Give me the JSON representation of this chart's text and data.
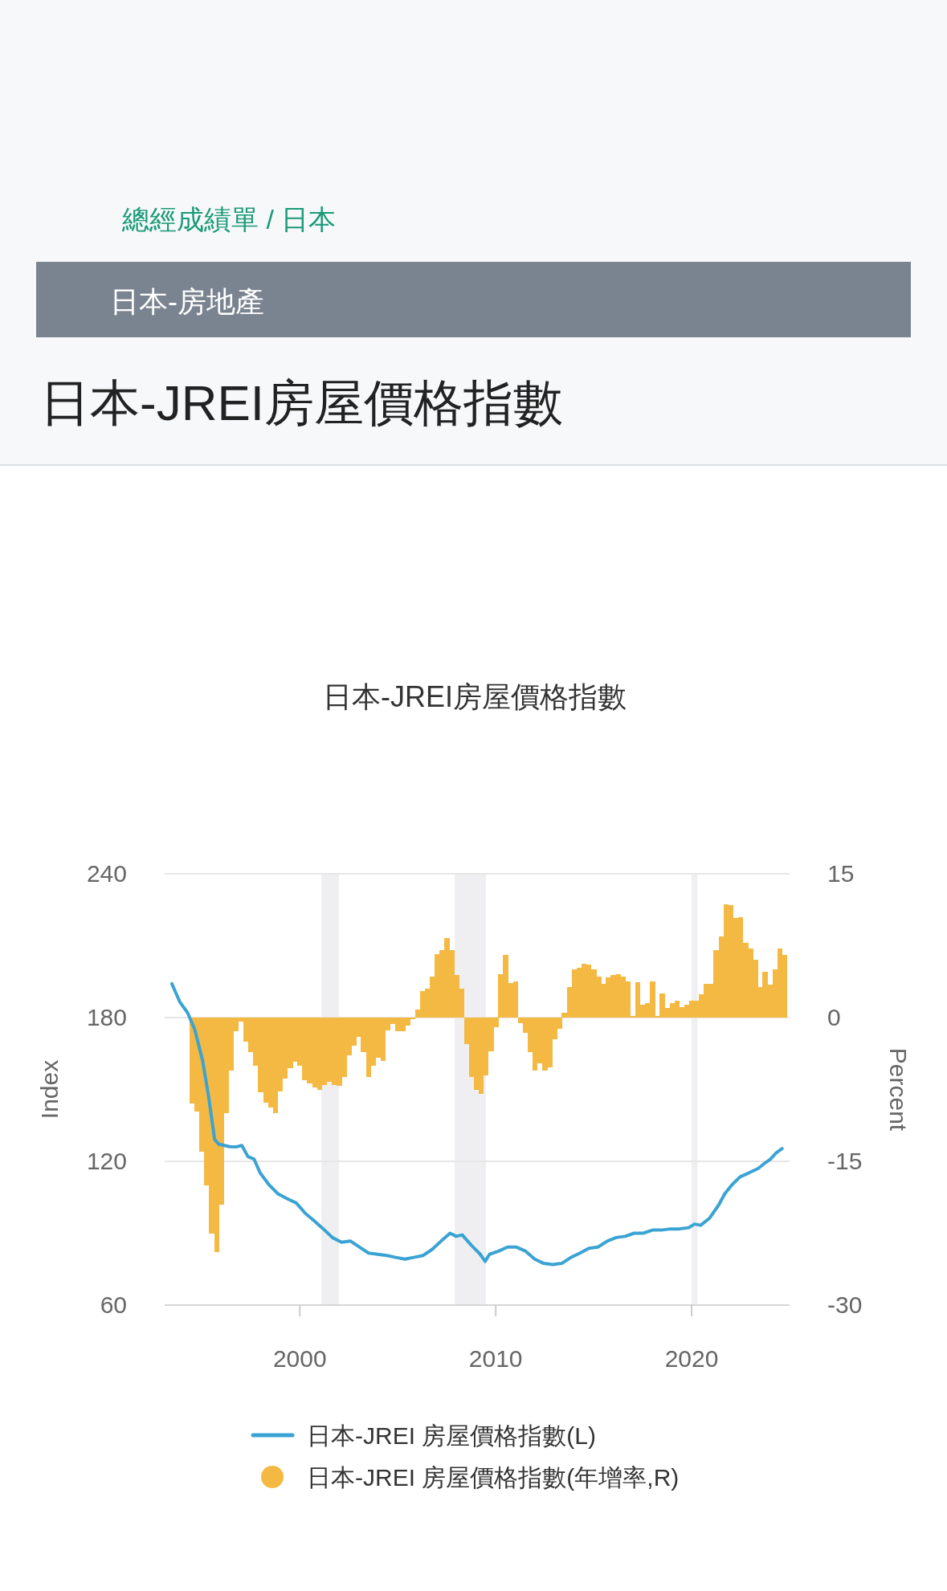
{
  "chart_data": {
    "type": "line",
    "title": "日本-JREI房屋價格指數",
    "annotations": [
      "總經成績單 / 日本",
      "日本-房地產",
      "日本-JREI房屋價格指數"
    ],
    "ylabel": "Index",
    "y2label": "Percent",
    "xlim": [
      1993.1,
      2025.0
    ],
    "xticks": [
      2000,
      2010,
      2020
    ],
    "ylim": [
      60,
      240
    ],
    "yticks": [
      60,
      120,
      180,
      240
    ],
    "y2lim": [
      -30,
      15
    ],
    "y2ticks": [
      -30,
      -15,
      0,
      15
    ],
    "grid": "y",
    "legend": "bottom",
    "bands": [
      {
        "axis": "x",
        "from": 2001.1,
        "to": 2002.0,
        "color": "#efeff2"
      },
      {
        "axis": "x",
        "from": 2007.9,
        "to": 2009.5,
        "color": "#efeff2"
      },
      {
        "axis": "x",
        "from": 2020.0,
        "to": 2020.3,
        "color": "#efeff2"
      }
    ],
    "series": [
      {
        "name": "日本-JREI 房屋價格指數(L)",
        "color": "#3ba3d3",
        "x": [
          1993.47,
          1993.87,
          1994.27,
          1994.64,
          1995.04,
          1995.35,
          1995.65,
          1995.87,
          1996.43,
          1996.73,
          1997.04,
          1997.35,
          1997.66,
          1997.97,
          1998.43,
          1998.89,
          1999.35,
          1999.82,
          2000.28,
          2000.74,
          2001.2,
          2001.66,
          2002.13,
          2002.59,
          2003.05,
          2003.51,
          2003.98,
          2004.44,
          2004.9,
          2005.36,
          2005.82,
          2006.29,
          2006.75,
          2007.21,
          2007.67,
          2007.98,
          2008.29,
          2008.75,
          2009.21,
          2009.46,
          2009.68,
          2010.14,
          2010.6,
          2011.06,
          2011.53,
          2011.99,
          2012.45,
          2012.91,
          2013.37,
          2013.84,
          2014.3,
          2014.76,
          2015.22,
          2015.69,
          2016.15,
          2016.61,
          2017.07,
          2017.53,
          2018.0,
          2018.46,
          2018.92,
          2019.38,
          2019.85,
          2020.15,
          2020.46,
          2020.92,
          2021.39,
          2021.69,
          2022.06,
          2022.47,
          2022.93,
          2023.39,
          2023.7,
          2024.01,
          2024.31,
          2024.62
        ],
        "values": [
          194.1,
          186.6,
          182.0,
          175.0,
          161.9,
          146.7,
          129.1,
          127.1,
          126.1,
          126.0,
          126.6,
          122.0,
          121.0,
          115.2,
          110.2,
          106.4,
          104.4,
          102.6,
          98.3,
          95.1,
          91.8,
          88.2,
          86.2,
          86.7,
          84.2,
          81.7,
          81.2,
          80.7,
          79.9,
          79.2,
          79.9,
          80.7,
          83.2,
          86.7,
          90.0,
          88.7,
          89.3,
          85.0,
          81.2,
          78.2,
          81.2,
          82.5,
          84.2,
          84.2,
          82.5,
          79.2,
          77.4,
          76.9,
          77.4,
          79.9,
          81.7,
          83.7,
          84.2,
          86.7,
          88.2,
          88.7,
          90.0,
          90.0,
          91.3,
          91.3,
          91.8,
          91.8,
          92.3,
          93.8,
          93.3,
          96.3,
          101.9,
          106.4,
          110.2,
          113.5,
          115.2,
          117.0,
          119.0,
          120.8,
          123.5,
          125.3
        ]
      },
      {
        "name": "日本-JREI 房屋價格指數(年增率,R)",
        "type": "bar",
        "axis": "y2",
        "color": "#f4b942",
        "x": [
          1994.5,
          1994.75,
          1995.0,
          1995.25,
          1995.5,
          1995.75,
          1996.0,
          1996.25,
          1996.5,
          1996.75,
          1997.0,
          1997.25,
          1997.5,
          1997.75,
          1998.0,
          1998.25,
          1998.5,
          1998.75,
          1999.0,
          1999.25,
          1999.5,
          1999.75,
          2000.0,
          2000.25,
          2000.5,
          2000.75,
          2001.0,
          2001.25,
          2001.5,
          2001.75,
          2002.0,
          2002.25,
          2002.5,
          2002.75,
          2003.0,
          2003.25,
          2003.5,
          2003.75,
          2004.0,
          2004.25,
          2004.5,
          2004.75,
          2005.0,
          2005.25,
          2005.5,
          2005.75,
          2006.0,
          2006.25,
          2006.5,
          2006.75,
          2007.0,
          2007.25,
          2007.5,
          2007.75,
          2008.0,
          2008.25,
          2008.5,
          2008.75,
          2009.0,
          2009.25,
          2009.5,
          2009.75,
          2010.0,
          2010.25,
          2010.5,
          2010.75,
          2011.0,
          2011.25,
          2011.5,
          2011.75,
          2012.0,
          2012.25,
          2012.5,
          2012.75,
          2013.0,
          2013.25,
          2013.5,
          2013.75,
          2014.0,
          2014.25,
          2014.5,
          2014.75,
          2015.0,
          2015.25,
          2015.5,
          2015.75,
          2016.0,
          2016.25,
          2016.5,
          2016.75,
          2017.0,
          2017.25,
          2017.5,
          2017.75,
          2018.0,
          2018.25,
          2018.5,
          2018.75,
          2019.0,
          2019.25,
          2019.5,
          2019.75,
          2020.0,
          2020.25,
          2020.5,
          2020.75,
          2021.0,
          2021.25,
          2021.5,
          2021.75,
          2022.0,
          2022.25,
          2022.5,
          2022.75,
          2023.0,
          2023.25,
          2023.5,
          2023.75,
          2024.0,
          2024.25,
          2024.5,
          2024.75
        ],
        "values": [
          -9.0,
          -9.8,
          -14.0,
          -17.5,
          -22.5,
          -24.5,
          -19.5,
          -10.0,
          -5.5,
          -1.4,
          -0.4,
          -2.5,
          -3.6,
          -5.0,
          -7.8,
          -8.9,
          -9.4,
          -10.0,
          -7.7,
          -6.4,
          -5.3,
          -4.6,
          -5.0,
          -6.5,
          -6.9,
          -7.3,
          -7.5,
          -7.0,
          -6.7,
          -7.0,
          -7.1,
          -6.2,
          -3.9,
          -2.9,
          -2.0,
          -3.6,
          -6.2,
          -5.0,
          -4.2,
          -4.5,
          -1.3,
          -0.7,
          -1.4,
          -1.4,
          -0.8,
          -0.2,
          0.8,
          2.8,
          3.0,
          4.3,
          6.6,
          7.0,
          8.3,
          7.0,
          4.4,
          3.0,
          -2.8,
          -6.2,
          -7.5,
          -8.0,
          -6.0,
          -3.5,
          -1.0,
          4.5,
          6.5,
          3.6,
          3.8,
          -0.6,
          -1.6,
          -3.6,
          -5.5,
          -4.8,
          -5.5,
          -5.2,
          -2.3,
          -1.2,
          0.5,
          3.2,
          5.0,
          5.2,
          5.6,
          5.5,
          5.0,
          4.3,
          3.5,
          4.2,
          4.4,
          4.5,
          4.3,
          3.8,
          0.2,
          3.7,
          1.3,
          1.5,
          3.8,
          0.2,
          2.5,
          1.0,
          1.5,
          1.8,
          1.1,
          1.3,
          1.8,
          1.8,
          2.4,
          3.5,
          3.5,
          7.0,
          8.5,
          11.8,
          11.7,
          10.4,
          10.5,
          7.8,
          7.2,
          6.0,
          3.2,
          4.8,
          3.4,
          5.0,
          7.2,
          6.5
        ]
      }
    ]
  }
}
